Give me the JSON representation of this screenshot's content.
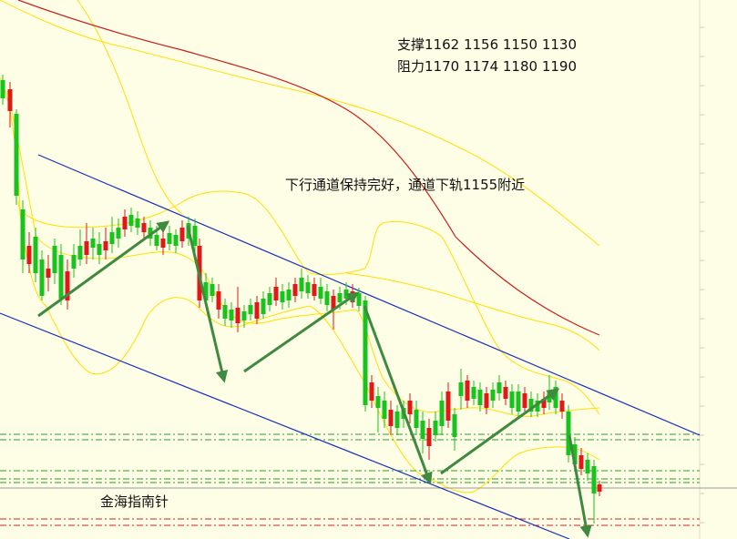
{
  "chart_data": {
    "type": "candlestick",
    "title": "",
    "xlabel": "",
    "ylabel": "",
    "y_axis_side": "right",
    "grid": false,
    "colors": {
      "background": "#fefde6",
      "bull_candle": "#19c31d",
      "bear_candle": "#e01818",
      "channel": "#1a2fbf",
      "arrow": "#3f8a3f",
      "bollinger": "#ffe000",
      "moving_average": "#c62020",
      "support_dash": "#2a9a2a",
      "resistance_dash": "#d22222"
    },
    "annotations": {
      "support": "支撑1162 1156 1150 1130",
      "resistance": "阻力1170 1174 1180 1190",
      "channel_note": "下行通道保持完好，通道下轨1155附近",
      "watermark": "金海指南针"
    }
  }
}
